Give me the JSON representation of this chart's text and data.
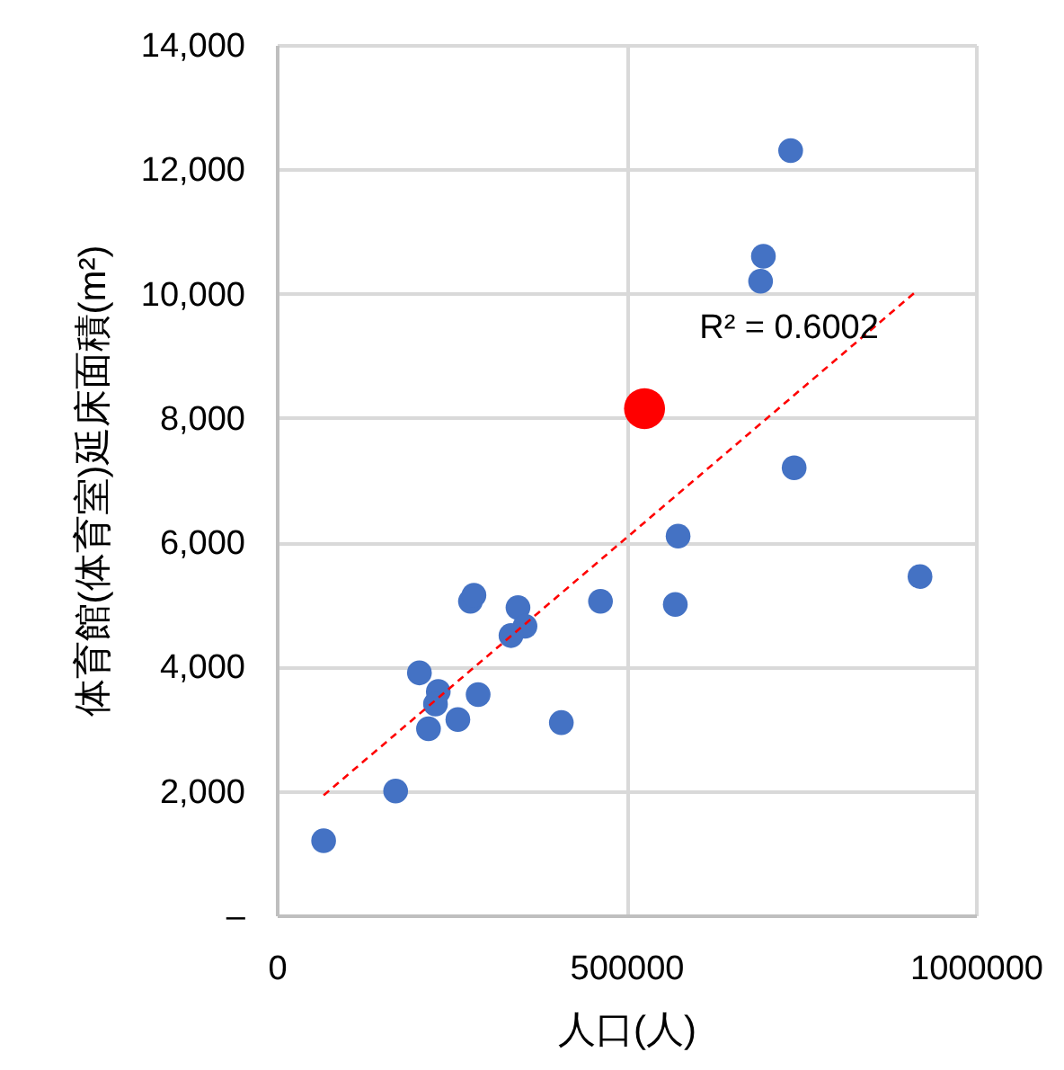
{
  "chart_data": {
    "type": "scatter",
    "xlabel": "人口(人)",
    "ylabel": "体育館(体育室)延床面積(m²)",
    "xlim": [
      0,
      1000000
    ],
    "xticks": [
      0,
      500000,
      1000000
    ],
    "ylim": [
      0,
      14000
    ],
    "yticks": [
      {
        "value": 0,
        "label": "–"
      },
      {
        "value": 2000,
        "label": "2,000"
      },
      {
        "value": 4000,
        "label": "4,000"
      },
      {
        "value": 6000,
        "label": "6,000"
      },
      {
        "value": 8000,
        "label": "8,000"
      },
      {
        "value": 10000,
        "label": "10,000"
      },
      {
        "value": 12000,
        "label": "12,000"
      },
      {
        "value": 14000,
        "label": "14,000"
      }
    ],
    "grid": true,
    "marker": "circle",
    "annotations": [
      "R² = 0.6002"
    ],
    "series": [
      {
        "color": "#4472c4",
        "x": [
          67000,
          170000,
          204000,
          231000,
          227000,
          217000,
          259000,
          288000,
          407000,
          277000,
          282000,
          345000,
          355000,
          335000,
          463000,
          570000,
          574000,
          920000,
          740000,
          696000,
          692000,
          735000
        ],
        "values": [
          1200,
          2000,
          3900,
          3600,
          3400,
          3000,
          3150,
          3550,
          3100,
          5050,
          5150,
          4950,
          4650,
          4500,
          5050,
          5000,
          6100,
          5450,
          7200,
          10600,
          10200,
          12300
        ]
      },
      {
        "color": "#ff0000",
        "x": [
          526000
        ],
        "values": [
          8150
        ]
      },
      {
        "type": "line",
        "color": "#ff0000",
        "marker": "none",
        "line_style": "dashed",
        "x": [
          67000,
          917000
        ],
        "values": [
          1930,
          10060
        ]
      }
    ]
  }
}
